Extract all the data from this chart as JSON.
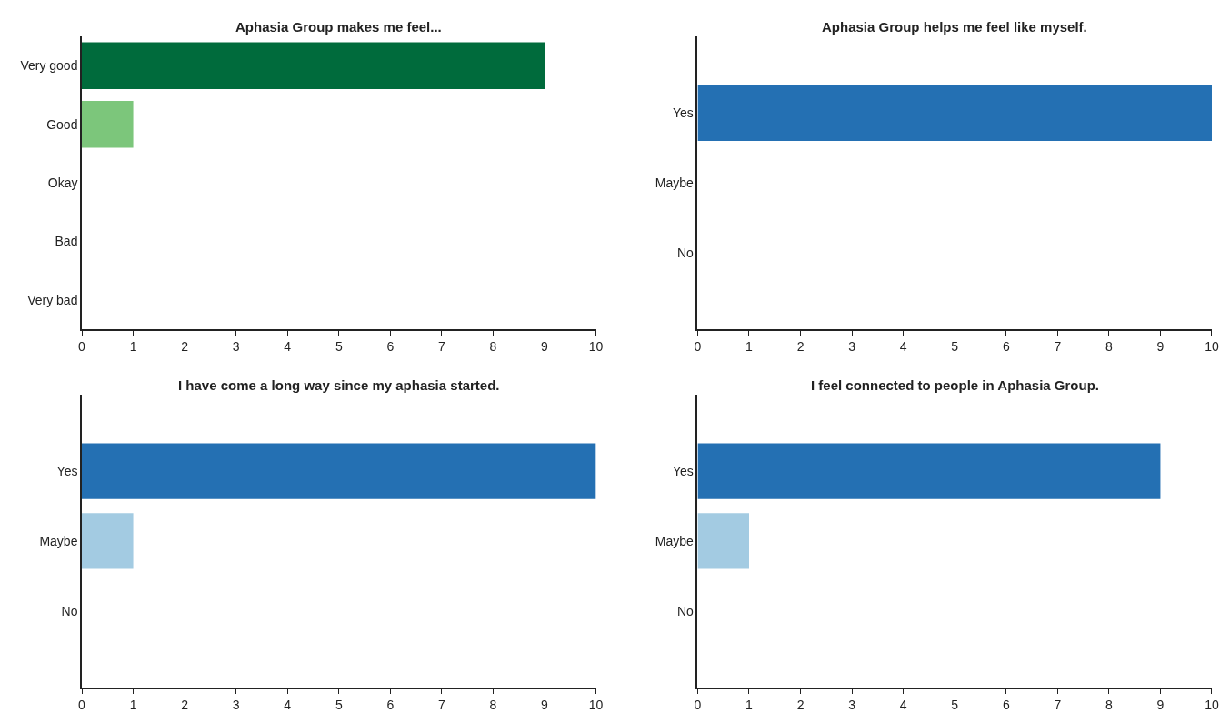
{
  "chart_data": [
    {
      "type": "bar",
      "orientation": "horizontal",
      "title": "Aphasia Group makes me feel...",
      "categories": [
        "Very good",
        "Good",
        "Okay",
        "Bad",
        "Very bad"
      ],
      "values": [
        9,
        1,
        0,
        0,
        0
      ],
      "colors": [
        "#006b3c",
        "#7cc67b",
        "#7cc67b",
        "#7cc67b",
        "#7cc67b"
      ],
      "xlim": [
        0,
        10
      ],
      "xticks": [
        0,
        1,
        2,
        3,
        4,
        5,
        6,
        7,
        8,
        9,
        10
      ]
    },
    {
      "type": "bar",
      "orientation": "horizontal",
      "title": "Aphasia Group helps me feel like myself.",
      "categories": [
        "Yes",
        "Maybe",
        "No"
      ],
      "values": [
        10,
        0,
        0
      ],
      "colors": [
        "#2470b3",
        "#a3cbe2",
        "#a3cbe2"
      ],
      "xlim": [
        0,
        10
      ],
      "xticks": [
        0,
        1,
        2,
        3,
        4,
        5,
        6,
        7,
        8,
        9,
        10
      ]
    },
    {
      "type": "bar",
      "orientation": "horizontal",
      "title": "I have come a long way since my aphasia started.",
      "categories": [
        "Yes",
        "Maybe",
        "No"
      ],
      "values": [
        10,
        1,
        0
      ],
      "colors": [
        "#2470b3",
        "#a3cbe2",
        "#a3cbe2"
      ],
      "xlim": [
        0,
        10
      ],
      "xticks": [
        0,
        1,
        2,
        3,
        4,
        5,
        6,
        7,
        8,
        9,
        10
      ]
    },
    {
      "type": "bar",
      "orientation": "horizontal",
      "title": "I feel connected to people in Aphasia Group.",
      "categories": [
        "Yes",
        "Maybe",
        "No"
      ],
      "values": [
        9,
        1,
        0
      ],
      "colors": [
        "#2470b3",
        "#a3cbe2",
        "#a3cbe2"
      ],
      "xlim": [
        0,
        10
      ],
      "xticks": [
        0,
        1,
        2,
        3,
        4,
        5,
        6,
        7,
        8,
        9,
        10
      ]
    }
  ]
}
